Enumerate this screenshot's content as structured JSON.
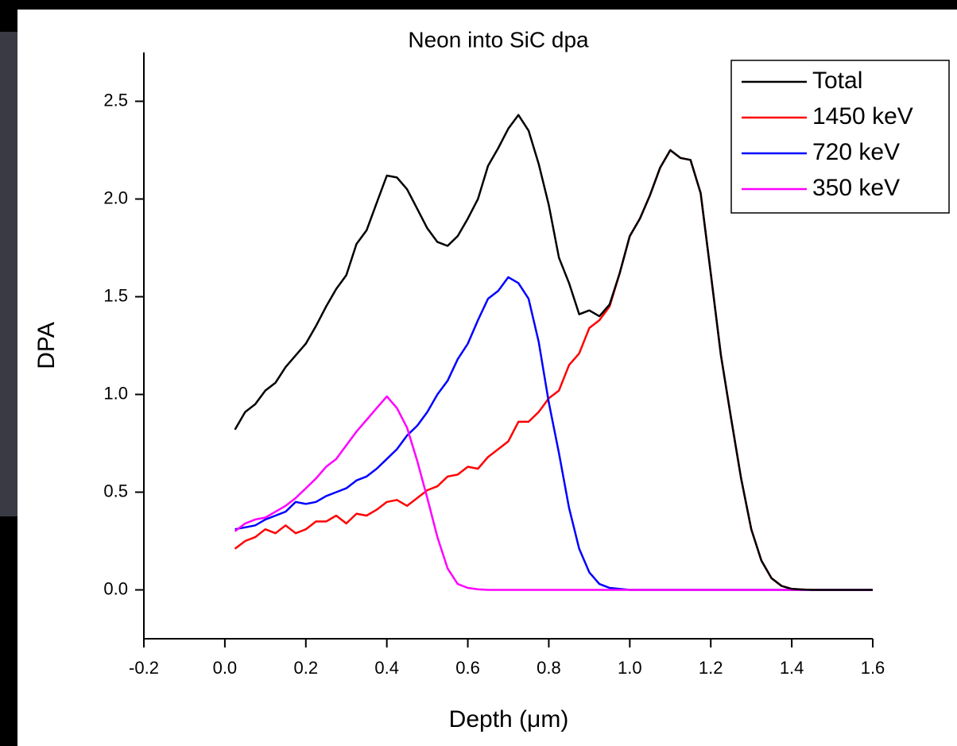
{
  "chart_data": {
    "type": "line",
    "title": "Neon into SiC dpa",
    "xlabel": "Depth (μm)",
    "ylabel": "DPA",
    "x": [
      0.025,
      0.05,
      0.075,
      0.1,
      0.125,
      0.15,
      0.175,
      0.2,
      0.225,
      0.25,
      0.275,
      0.3,
      0.325,
      0.35,
      0.375,
      0.4,
      0.425,
      0.45,
      0.475,
      0.5,
      0.525,
      0.55,
      0.575,
      0.6,
      0.625,
      0.65,
      0.675,
      0.7,
      0.725,
      0.75,
      0.775,
      0.8,
      0.825,
      0.85,
      0.875,
      0.9,
      0.925,
      0.95,
      0.975,
      1.0,
      1.025,
      1.05,
      1.075,
      1.1,
      1.125,
      1.15,
      1.175,
      1.2,
      1.225,
      1.25,
      1.275,
      1.3,
      1.325,
      1.35,
      1.375,
      1.4,
      1.425,
      1.45,
      1.475,
      1.5,
      1.525,
      1.55,
      1.575,
      1.6
    ],
    "series": [
      {
        "name": "Total",
        "color": "#000000",
        "values": [
          0.82,
          0.91,
          0.95,
          1.02,
          1.06,
          1.14,
          1.2,
          1.26,
          1.35,
          1.45,
          1.54,
          1.61,
          1.77,
          1.84,
          1.98,
          2.12,
          2.11,
          2.05,
          1.95,
          1.85,
          1.78,
          1.76,
          1.81,
          1.9,
          2.0,
          2.17,
          2.26,
          2.36,
          2.43,
          2.35,
          2.18,
          1.97,
          1.7,
          1.57,
          1.41,
          1.43,
          1.4,
          1.46,
          1.62,
          1.81,
          1.9,
          2.02,
          2.16,
          2.25,
          2.21,
          2.2,
          2.03,
          1.62,
          1.2,
          0.88,
          0.57,
          0.31,
          0.15,
          0.06,
          0.02,
          0.005,
          0.002,
          0,
          0,
          0,
          0,
          0,
          0,
          0
        ]
      },
      {
        "name": "1450 keV",
        "color": "#ff0000",
        "values": [
          0.21,
          0.25,
          0.27,
          0.31,
          0.29,
          0.33,
          0.29,
          0.31,
          0.35,
          0.35,
          0.38,
          0.34,
          0.39,
          0.38,
          0.41,
          0.45,
          0.46,
          0.43,
          0.47,
          0.51,
          0.53,
          0.58,
          0.59,
          0.63,
          0.62,
          0.68,
          0.72,
          0.76,
          0.86,
          0.86,
          0.91,
          0.98,
          1.02,
          1.15,
          1.21,
          1.34,
          1.38,
          1.45,
          1.62,
          1.81,
          1.9,
          2.02,
          2.16,
          2.25,
          2.21,
          2.2,
          2.03,
          1.62,
          1.2,
          0.88,
          0.57,
          0.31,
          0.15,
          0.06,
          0.02,
          0.005,
          0.002,
          0,
          0,
          0,
          0,
          0,
          0,
          0
        ]
      },
      {
        "name": "720 keV",
        "color": "#0000ff",
        "values": [
          0.31,
          0.32,
          0.33,
          0.36,
          0.38,
          0.4,
          0.45,
          0.44,
          0.45,
          0.48,
          0.5,
          0.52,
          0.56,
          0.58,
          0.62,
          0.67,
          0.72,
          0.79,
          0.84,
          0.91,
          1.0,
          1.07,
          1.18,
          1.26,
          1.38,
          1.49,
          1.53,
          1.6,
          1.57,
          1.49,
          1.27,
          0.96,
          0.7,
          0.42,
          0.21,
          0.09,
          0.03,
          0.01,
          0.005,
          0,
          0,
          0,
          0,
          0,
          0,
          0,
          0,
          0,
          0,
          0,
          0,
          0,
          0,
          0,
          0,
          0,
          0,
          0,
          0,
          0,
          0,
          0,
          0,
          0
        ]
      },
      {
        "name": "350 keV",
        "color": "#ff00ff",
        "values": [
          0.3,
          0.34,
          0.36,
          0.37,
          0.4,
          0.43,
          0.47,
          0.52,
          0.57,
          0.63,
          0.67,
          0.74,
          0.81,
          0.87,
          0.93,
          0.99,
          0.93,
          0.83,
          0.66,
          0.47,
          0.27,
          0.11,
          0.03,
          0.01,
          0.003,
          0,
          0,
          0,
          0,
          0,
          0,
          0,
          0,
          0,
          0,
          0,
          0,
          0,
          0,
          0,
          0,
          0,
          0,
          0,
          0,
          0,
          0,
          0,
          0,
          0,
          0,
          0,
          0,
          0,
          0,
          0,
          0,
          0,
          0,
          0,
          0,
          0,
          0,
          0
        ]
      }
    ],
    "xlim": [
      -0.2,
      1.6
    ],
    "ylim": [
      -0.25,
      2.75
    ],
    "xticks": [
      -0.2,
      {
        "value": 0,
        "label": "0.0"
      },
      0.2,
      0.4,
      0.6,
      0.8,
      {
        "value": 1,
        "label": "1.0"
      },
      1.2,
      1.4,
      1.6
    ],
    "yticks": [
      {
        "value": 0,
        "label": "0.0"
      },
      0.5,
      {
        "value": 1,
        "label": "1.0"
      },
      1.5,
      {
        "value": 2,
        "label": "2.0"
      },
      2.5
    ],
    "legend": "upper right"
  }
}
